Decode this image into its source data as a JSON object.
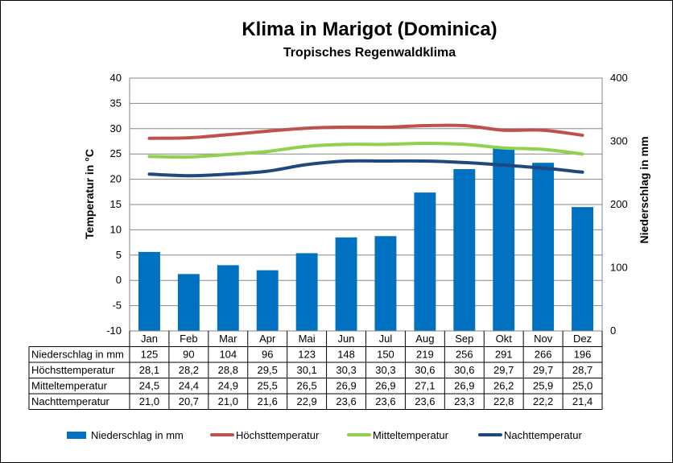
{
  "chart_data": {
    "type": "bar",
    "title": "Klima in Marigot (Dominica)",
    "subtitle": "Tropisches Regenwaldklima",
    "ylabel_left": "Temperatur in °C",
    "ylabel_right": "Niederschlag in mm",
    "ylim_left": [
      -10,
      40
    ],
    "ylim_right": [
      0,
      400
    ],
    "yticks_left": [
      "40",
      "35",
      "30",
      "25",
      "20",
      "15",
      "10",
      "5",
      "0",
      "-5",
      "-10"
    ],
    "yticks_right": [
      "400",
      "300",
      "200",
      "100",
      "0"
    ],
    "grid": true,
    "legend_position": "bottom",
    "categories": [
      "Jan",
      "Feb",
      "Mar",
      "Apr",
      "Mai",
      "Jun",
      "Jul",
      "Aug",
      "Sep",
      "Okt",
      "Nov",
      "Dez"
    ],
    "series": [
      {
        "name": "Niederschlag in mm",
        "kind": "bar",
        "axis": "right",
        "color": "#0070C0",
        "values": [
          125,
          90,
          104,
          96,
          123,
          148,
          150,
          219,
          256,
          291,
          266,
          196
        ],
        "labels": [
          "125",
          "90",
          "104",
          "96",
          "123",
          "148",
          "150",
          "219",
          "256",
          "291",
          "266",
          "196"
        ]
      },
      {
        "name": "Höchsttemperatur",
        "kind": "line",
        "axis": "left",
        "color": "#C0504D",
        "values": [
          28.1,
          28.2,
          28.8,
          29.5,
          30.1,
          30.3,
          30.3,
          30.6,
          30.6,
          29.7,
          29.7,
          28.7
        ],
        "labels": [
          "28,1",
          "28,2",
          "28,8",
          "29,5",
          "30,1",
          "30,3",
          "30,3",
          "30,6",
          "30,6",
          "29,7",
          "29,7",
          "28,7"
        ]
      },
      {
        "name": "Mitteltemperatur",
        "kind": "line",
        "axis": "left",
        "color": "#92D050",
        "values": [
          24.5,
          24.4,
          24.9,
          25.5,
          26.5,
          26.9,
          26.9,
          27.1,
          26.9,
          26.2,
          25.9,
          25.0
        ],
        "labels": [
          "24,5",
          "24,4",
          "24,9",
          "25,5",
          "26,5",
          "26,9",
          "26,9",
          "27,1",
          "26,9",
          "26,2",
          "25,9",
          "25,0"
        ]
      },
      {
        "name": "Nachttemperatur",
        "kind": "line",
        "axis": "left",
        "color": "#1F497D",
        "values": [
          21.0,
          20.7,
          21.0,
          21.6,
          22.9,
          23.6,
          23.6,
          23.6,
          23.3,
          22.8,
          22.2,
          21.4
        ],
        "labels": [
          "21,0",
          "20,7",
          "21,0",
          "21,6",
          "22,9",
          "23,6",
          "23,6",
          "23,6",
          "23,3",
          "22,8",
          "22,2",
          "21,4"
        ]
      }
    ]
  }
}
